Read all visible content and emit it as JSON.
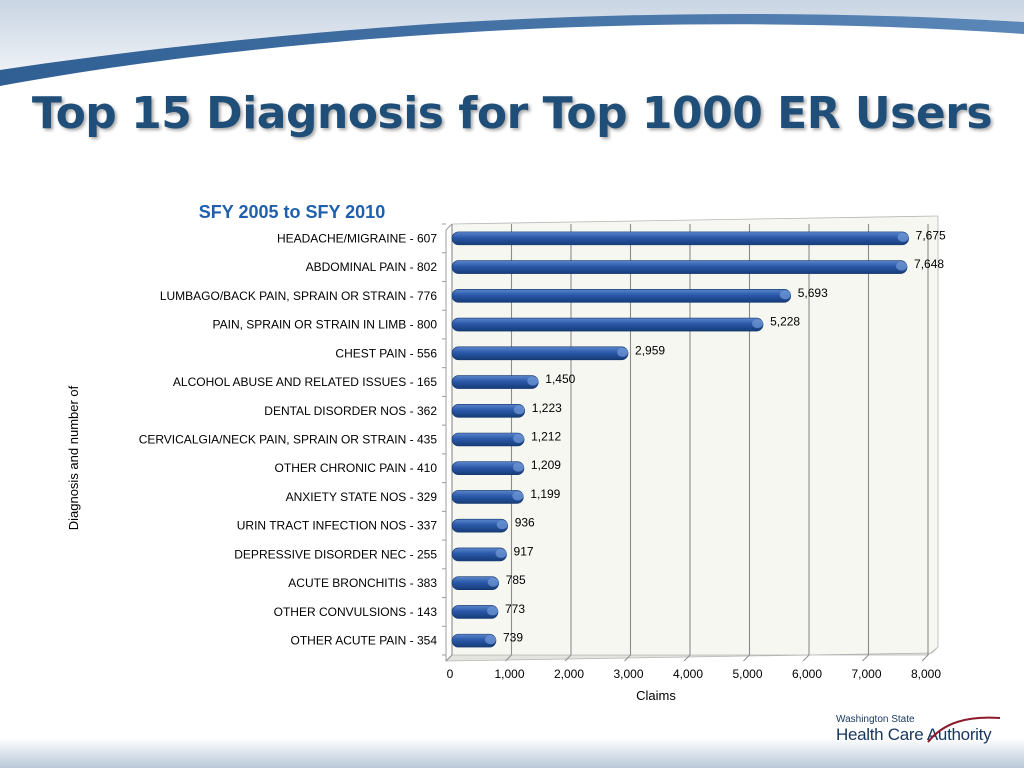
{
  "slide": {
    "title": "Top 15 Diagnosis for Top 1000 ER Users"
  },
  "logo": {
    "line1": "Washington State",
    "line2": "Health Care Authority"
  },
  "colors": {
    "title": "#1f4e79",
    "subtitle": "#1f5fae",
    "bar": "#1f4e99",
    "bar_highlight": "#5b86cc",
    "plot_bg": "#f7f7f2"
  },
  "chart_data": {
    "type": "bar",
    "orientation": "horizontal",
    "title": "SFY 2005 to SFY 2010",
    "xlabel": "Claims",
    "ylabel": "Diagnosis and number of",
    "xlim": [
      0,
      8000
    ],
    "xticks": [
      "0",
      "1,000",
      "2,000",
      "3,000",
      "4,000",
      "5,000",
      "6,000",
      "7,000",
      "8,000"
    ],
    "grid": true,
    "categories": [
      "HEADACHE/MIGRAINE - 607",
      "ABDOMINAL PAIN - 802",
      "LUMBAGO/BACK PAIN, SPRAIN OR STRAIN - 776",
      "PAIN, SPRAIN OR STRAIN IN LIMB - 800",
      "CHEST PAIN - 556",
      "ALCOHOL ABUSE AND RELATED ISSUES - 165",
      "DENTAL DISORDER NOS - 362",
      "CERVICALGIA/NECK PAIN, SPRAIN OR STRAIN - 435",
      "OTHER CHRONIC PAIN - 410",
      "ANXIETY STATE NOS - 329",
      "URIN TRACT INFECTION NOS - 337",
      "DEPRESSIVE DISORDER NEC - 255",
      "ACUTE BRONCHITIS - 383",
      "OTHER CONVULSIONS - 143",
      "OTHER ACUTE PAIN - 354"
    ],
    "values": [
      7675,
      7648,
      5693,
      5228,
      2959,
      1450,
      1223,
      1212,
      1209,
      1199,
      936,
      917,
      785,
      773,
      739
    ],
    "value_labels": [
      "7,675",
      "7,648",
      "5,693",
      "5,228",
      "2,959",
      "1,450",
      "1,223",
      "1,212",
      "1,209",
      "1,199",
      "936",
      "917",
      "785",
      "773",
      "739"
    ]
  }
}
